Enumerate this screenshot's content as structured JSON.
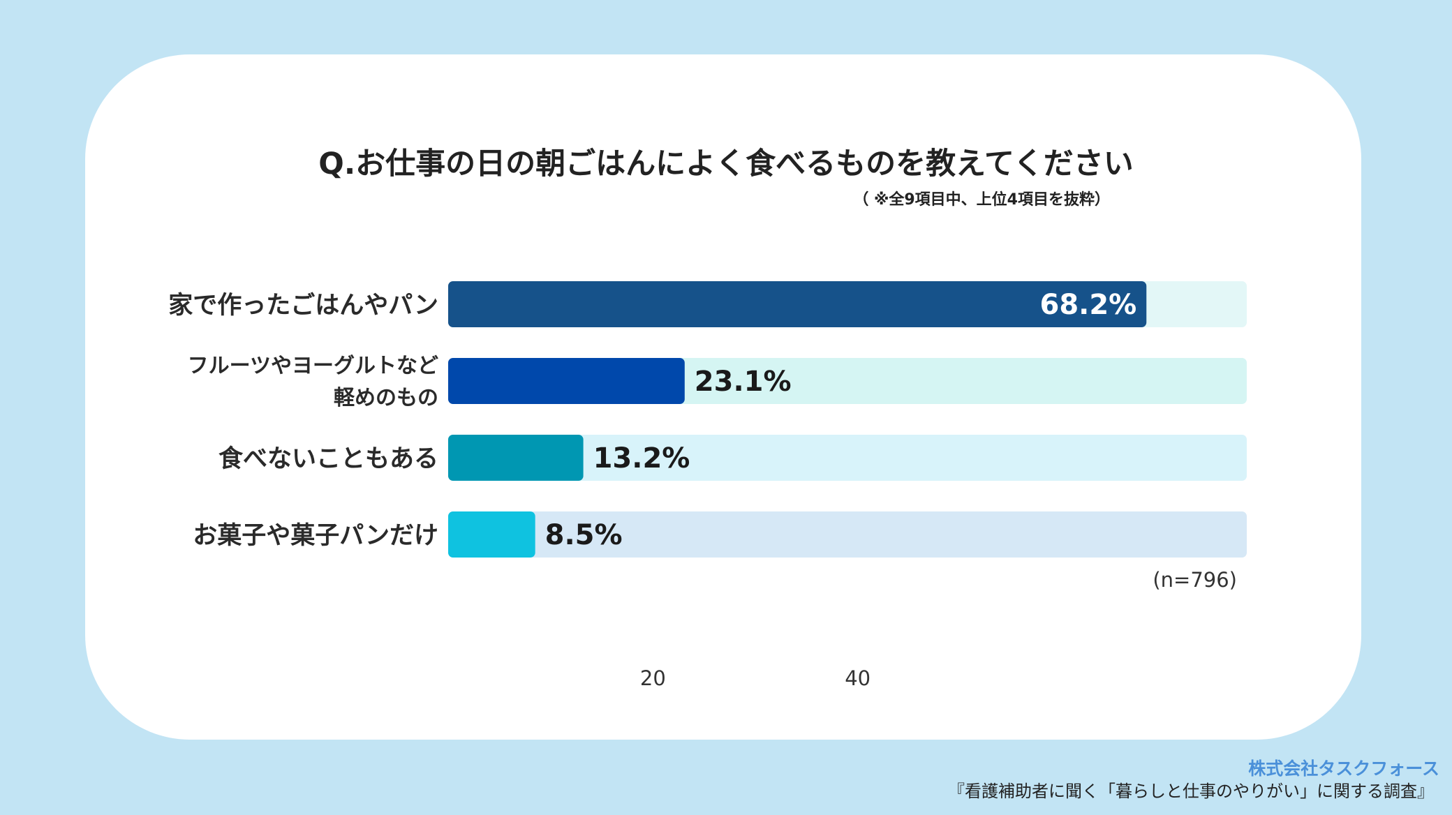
{
  "chart_data": {
    "type": "bar",
    "orientation": "horizontal",
    "title": "Q.お仕事の日の朝ごはんによく食べるものを教えてください",
    "subtitle": "（ ※全9項目中、上位4項目を抜粋）",
    "categories": [
      [
        "家で作ったごはんやパン"
      ],
      [
        "フルーツやヨーグルトなど",
        "軽めのもの"
      ],
      [
        "食べないこともある"
      ],
      [
        "お菓子や菓子パンだけ"
      ]
    ],
    "values": [
      68.2,
      23.1,
      13.2,
      8.5
    ],
    "value_labels": [
      "68.2%",
      "23.1%",
      "13.2%",
      "8.5%"
    ],
    "unit": "%",
    "x_ticks": [
      20,
      40
    ],
    "xlim": [
      0,
      78
    ],
    "note": "(n=796)",
    "bar_colors": [
      "#16528a",
      "#0048ab",
      "#0097b2",
      "#0fc2e0"
    ],
    "track_colors": [
      "#e3f7f7",
      "#d5f5f3",
      "#d8f3fa",
      "#d6e8f6"
    ],
    "label_colors": [
      "#ffffff",
      "#1a1a1a",
      "#1a1a1a",
      "#1a1a1a"
    ]
  },
  "footer": {
    "company": "株式会社タスクフォース",
    "survey": "『看護補助者に聞く「暮らしと仕事のやりがい」に関する調査』"
  },
  "colors": {
    "background": "#c2e4f4",
    "card": "#ffffff",
    "company_text": "#4a90d9"
  }
}
